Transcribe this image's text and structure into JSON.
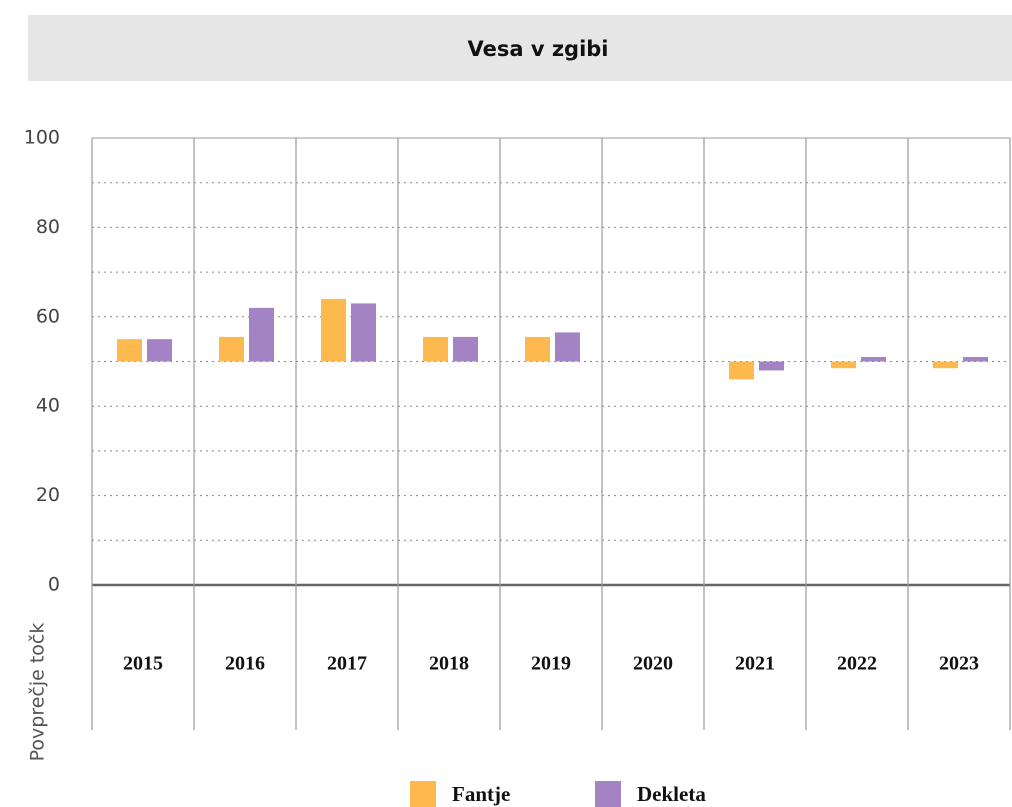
{
  "chart_data": {
    "type": "bar",
    "title": "Vesa v zgibi",
    "y_label": "Povprečje točk",
    "categories": [
      "2015",
      "2016",
      "2017",
      "2018",
      "2019",
      "2020",
      "2021",
      "2022",
      "2023"
    ],
    "series": [
      {
        "name": "Fantje",
        "color": "#fdb94e",
        "values": [
          55,
          55.5,
          64,
          55.5,
          55.5,
          null,
          46,
          48.5,
          48.5
        ]
      },
      {
        "name": "Dekleta",
        "color": "#a383c4",
        "values": [
          55,
          62,
          63,
          55.5,
          56.5,
          null,
          48,
          51,
          51
        ]
      }
    ],
    "baseline": 50,
    "ylim": [
      0,
      100
    ],
    "yticks": [
      0,
      20,
      40,
      60,
      80,
      100
    ],
    "minor_yticks": [
      10,
      30,
      50,
      70,
      90
    ],
    "grid": true,
    "legend": "bottom"
  }
}
